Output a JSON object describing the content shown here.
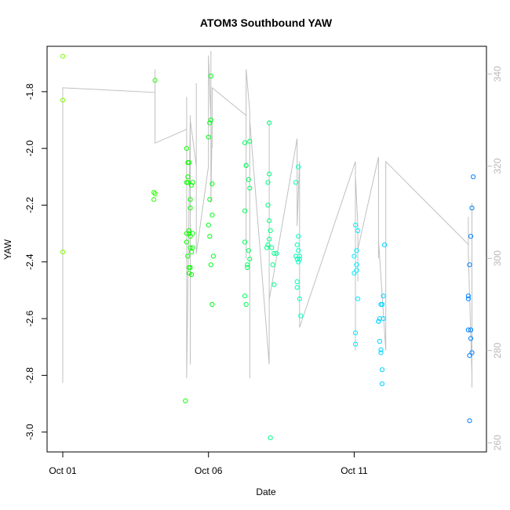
{
  "chart_data": {
    "type": "scatter",
    "title": "ATOM3 Southbound YAW",
    "xlabel": "Date",
    "ylabel": "YAW",
    "x_axis": {
      "type": "date",
      "xlim": [
        "2023-10-01",
        "2023-10-15"
      ],
      "ticks": [
        "Oct 01",
        "Oct 06",
        "Oct 11"
      ]
    },
    "y_left": {
      "ylim": [
        -3.07,
        -1.64
      ],
      "ticks": [
        -3.0,
        -2.8,
        -2.6,
        -2.4,
        -2.2,
        -2.0,
        -1.8
      ]
    },
    "y_right": {
      "ylim": [
        258,
        346
      ],
      "ticks": [
        260,
        280,
        300,
        320,
        340
      ],
      "color": "#b8b8b8"
    },
    "colors": {
      "point_gradient": [
        "#7fff00",
        "#00ff00",
        "#00ffff",
        "#0080ff"
      ],
      "line_color": "#c0c0c0"
    },
    "line_series": {
      "axis": "right",
      "x": [
        "2023-10-01 00:00",
        "2023-10-01 00:00",
        "2023-10-01 00:00",
        "2023-10-04 04:00",
        "2023-10-04 04:00",
        "2023-10-04 04:00",
        "2023-10-04 04:00",
        "2023-10-05 06:00",
        "2023-10-05 06:00",
        "2023-10-05 06:00",
        "2023-10-05 09:00",
        "2023-10-05 09:00",
        "2023-10-05 09:00",
        "2023-10-05 14:00",
        "2023-10-05 14:00",
        "2023-10-05 14:00",
        "2023-10-06 00:00",
        "2023-10-06 00:00",
        "2023-10-06 00:00",
        "2023-10-06 02:00",
        "2023-10-06 02:00",
        "2023-10-06 02:00",
        "2023-10-06 03:00",
        "2023-10-06 03:00",
        "2023-10-06 03:00",
        "2023-10-07 07:00",
        "2023-10-07 07:00",
        "2023-10-07 07:00",
        "2023-10-07 10:00",
        "2023-10-07 10:00",
        "2023-10-07 10:00",
        "2023-10-08 02:00",
        "2023-10-08 02:00",
        "2023-10-08 02:00",
        "2023-10-09 01:00",
        "2023-10-09 01:00",
        "2023-10-09 01:00",
        "2023-10-09 03:00",
        "2023-10-09 03:00",
        "2023-10-11 01:00",
        "2023-10-11 01:00",
        "2023-10-11 01:00",
        "2023-10-11 03:00",
        "2023-10-11 03:00",
        "2023-10-11 03:00",
        "2023-10-11 20:00",
        "2023-10-11 20:00",
        "2023-10-11 20:00",
        "2023-10-12 02:00",
        "2023-10-12 02:00",
        "2023-10-14 22:00",
        "2023-10-14 22:00",
        "2023-10-14 22:00",
        "2023-10-15 01:00",
        "2023-10-15 01:00",
        "2023-10-15 01:00"
      ],
      "y": [
        273,
        273,
        337,
        336,
        327,
        341,
        325,
        328,
        335,
        274,
        331,
        277,
        330,
        320,
        338,
        301,
        320,
        339,
        344,
        330,
        345,
        312,
        330,
        324,
        337,
        331,
        300,
        341,
        332,
        274,
        330,
        277,
        330,
        291,
        326,
        312,
        307,
        321,
        285,
        321,
        280,
        318,
        307,
        295,
        302,
        322,
        300,
        304,
        280,
        321,
        303,
        309,
        301,
        275,
        312,
        272
      ]
    },
    "points": {
      "x": [
        "2023-10-01 00:00",
        "2023-10-01 00:00",
        "2023-10-01 00:00",
        "2023-10-04 03:00",
        "2023-10-04 03:00",
        "2023-10-04 04:00",
        "2023-10-04 04:00",
        "2023-10-05 05:00",
        "2023-10-05 06:00",
        "2023-10-05 06:00",
        "2023-10-05 06:00",
        "2023-10-05 06:00",
        "2023-10-05 07:00",
        "2023-10-05 07:00",
        "2023-10-05 07:00",
        "2023-10-05 07:00",
        "2023-10-05 08:00",
        "2023-10-05 08:00",
        "2023-10-05 08:00",
        "2023-10-05 08:00",
        "2023-10-05 08:00",
        "2023-10-05 09:00",
        "2023-10-05 09:00",
        "2023-10-05 09:00",
        "2023-10-05 09:00",
        "2023-10-05 09:00",
        "2023-10-05 10:00",
        "2023-10-05 10:00",
        "2023-10-05 10:00",
        "2023-10-05 11:00",
        "2023-10-05 11:00",
        "2023-10-05 11:00",
        "2023-10-06 00:00",
        "2023-10-06 00:00",
        "2023-10-06 01:00",
        "2023-10-06 01:00",
        "2023-10-06 01:00",
        "2023-10-06 02:00",
        "2023-10-06 02:00",
        "2023-10-06 02:00",
        "2023-10-06 03:00",
        "2023-10-06 03:00",
        "2023-10-06 03:00",
        "2023-10-06 04:00",
        "2023-10-07 06:00",
        "2023-10-07 06:00",
        "2023-10-07 06:00",
        "2023-10-07 06:00",
        "2023-10-07 07:00",
        "2023-10-07 07:00",
        "2023-10-07 07:00",
        "2023-10-07 08:00",
        "2023-10-07 08:00",
        "2023-10-07 09:00",
        "2023-10-07 09:00",
        "2023-10-07 10:00",
        "2023-10-07 10:00",
        "2023-10-07 10:00",
        "2023-10-08 00:00",
        "2023-10-08 01:00",
        "2023-10-08 01:00",
        "2023-10-08 01:00",
        "2023-10-08 02:00",
        "2023-10-08 02:00",
        "2023-10-08 02:00",
        "2023-10-08 02:00",
        "2023-10-08 03:00",
        "2023-10-08 03:00",
        "2023-10-08 04:00",
        "2023-10-08 05:00",
        "2023-10-08 06:00",
        "2023-10-08 06:00",
        "2023-10-08 08:00",
        "2023-10-09 00:00",
        "2023-10-09 00:00",
        "2023-10-09 01:00",
        "2023-10-09 01:00",
        "2023-10-09 01:00",
        "2023-10-09 01:00",
        "2023-10-09 02:00",
        "2023-10-09 02:00",
        "2023-10-09 02:00",
        "2023-10-09 02:00",
        "2023-10-09 03:00",
        "2023-10-09 03:00",
        "2023-10-09 03:00",
        "2023-10-09 04:00",
        "2023-10-11 00:00",
        "2023-10-11 00:00",
        "2023-10-11 01:00",
        "2023-10-11 01:00",
        "2023-10-11 01:00",
        "2023-10-11 02:00",
        "2023-10-11 02:00",
        "2023-10-11 02:00",
        "2023-10-11 03:00",
        "2023-10-11 03:00",
        "2023-10-11 20:00",
        "2023-10-11 20:00",
        "2023-10-11 21:00",
        "2023-10-11 21:00",
        "2023-10-11 22:00",
        "2023-10-11 22:00",
        "2023-10-11 22:00",
        "2023-10-11 23:00",
        "2023-10-11 23:00",
        "2023-10-11 23:00",
        "2023-10-12 00:00",
        "2023-10-12 00:00",
        "2023-10-12 01:00",
        "2023-10-14 22:00",
        "2023-10-14 22:00",
        "2023-10-14 22:00",
        "2023-10-14 23:00",
        "2023-10-14 23:00",
        "2023-10-14 23:00",
        "2023-10-15 00:00",
        "2023-10-15 00:00",
        "2023-10-15 00:00",
        "2023-10-15 01:00",
        "2023-10-15 01:00",
        "2023-10-15 02:00"
      ],
      "y": [
        -1.675,
        -1.83,
        -2.365,
        -2.155,
        -2.18,
        -2.16,
        -1.76,
        -2.89,
        -2.12,
        -2.0,
        -2.33,
        -2.3,
        -2.05,
        -2.12,
        -2.1,
        -2.38,
        -2.42,
        -2.44,
        -2.29,
        -2.3,
        -2.05,
        -2.35,
        -2.18,
        -2.21,
        -2.31,
        -2.42,
        -2.445,
        -2.365,
        -2.13,
        -2.3,
        -2.35,
        -2.12,
        -1.96,
        -2.27,
        -1.91,
        -2.18,
        -2.31,
        -2.41,
        -1.9,
        -1.745,
        -2.55,
        -2.235,
        -2.125,
        -2.38,
        -1.98,
        -2.52,
        -2.33,
        -2.22,
        -2.06,
        -2.55,
        -2.06,
        -2.41,
        -2.42,
        -2.36,
        -2.11,
        -1.975,
        -2.39,
        -2.14,
        -2.35,
        -2.34,
        -2.12,
        -2.2,
        -2.255,
        -2.32,
        -2.09,
        -1.91,
        -2.29,
        -3.02,
        -2.35,
        -2.41,
        -2.48,
        -2.37,
        -2.37,
        -2.12,
        -2.38,
        -2.49,
        -2.47,
        -2.39,
        -2.34,
        -2.31,
        -2.065,
        -2.36,
        -2.4,
        -2.38,
        -2.39,
        -2.53,
        -2.59,
        -2.44,
        -2.38,
        -2.27,
        -2.65,
        -2.69,
        -2.36,
        -2.41,
        -2.43,
        -2.29,
        -2.53,
        -2.61,
        -2.61,
        -2.6,
        -2.68,
        -2.71,
        -2.72,
        -2.55,
        -2.55,
        -2.78,
        -2.83,
        -2.6,
        -2.52,
        -2.34,
        -2.52,
        -2.53,
        -2.64,
        -2.73,
        -2.41,
        -2.96,
        -2.31,
        -2.67,
        -2.64,
        -2.72,
        -2.21,
        -2.1
      ]
    }
  }
}
